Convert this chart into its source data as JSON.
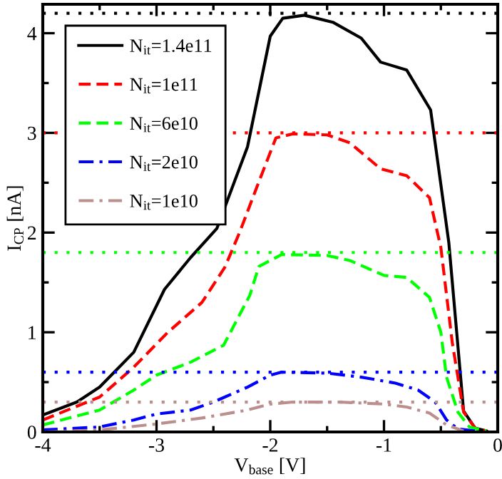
{
  "chart_data": {
    "type": "line",
    "xlabel": "V$_{base}$ [V]",
    "ylabel": "I$_{CP}$ [nA]",
    "xlim": [
      -4,
      0
    ],
    "ylim": [
      0,
      4.29
    ],
    "xticks": [
      -4,
      {
        "value": -3.5,
        "label": null
      },
      -3,
      {
        "value": -2.5,
        "label": null
      },
      -2,
      {
        "value": -1.5,
        "label": null
      },
      -1,
      {
        "value": -0.5,
        "label": null
      },
      0
    ],
    "yticks": [
      0,
      {
        "value": 0.5,
        "label": null
      },
      1,
      {
        "value": 1.5,
        "label": null
      },
      2,
      {
        "value": 2.5,
        "label": null
      },
      3,
      {
        "value": 3.5,
        "label": null
      },
      4
    ],
    "grid": false,
    "legend": "top left",
    "marker": "none",
    "series": [
      {
        "name": "N$_{it}$=1.4e11",
        "color": "#000000",
        "line_style": "solid",
        "x": [
          -4,
          -3.7,
          -3.5,
          -3.2,
          -2.93,
          -2.7,
          -2.47,
          -2.2,
          -2.0,
          -1.89,
          -1.7,
          -1.45,
          -1.2,
          -1.03,
          -0.8,
          -0.59,
          -0.43,
          -0.3,
          -0.2,
          -0.1
        ],
        "values": [
          0.17,
          0.3,
          0.45,
          0.8,
          1.43,
          1.75,
          2.04,
          2.86,
          3.97,
          4.15,
          4.18,
          4.11,
          3.95,
          3.71,
          3.63,
          3.23,
          1.9,
          0.21,
          0.04,
          0.01
        ]
      },
      {
        "name": "N$_{it}$=1e11",
        "color": "#ff0000",
        "line_style": "dashed",
        "x": [
          -4,
          -3.5,
          -3.2,
          -2.9,
          -2.6,
          -2.4,
          -2.27,
          -2.1,
          -1.95,
          -1.8,
          -1.5,
          -1.3,
          -1.03,
          -0.8,
          -0.6,
          -0.5,
          -0.4,
          -0.3,
          -0.2,
          -0.1
        ],
        "values": [
          0.12,
          0.35,
          0.65,
          1.0,
          1.3,
          1.65,
          2.0,
          2.51,
          2.95,
          2.99,
          2.98,
          2.9,
          2.64,
          2.57,
          2.35,
          1.85,
          0.9,
          0.2,
          0.04,
          0.01
        ]
      },
      {
        "name": "N$_{it}$=6e10",
        "color": "#00ff00",
        "line_style": "dashed",
        "x": [
          -4,
          -3.5,
          -3.2,
          -3.0,
          -2.7,
          -2.41,
          -2.18,
          -2.1,
          -1.9,
          -1.5,
          -1.3,
          -1.0,
          -0.8,
          -0.6,
          -0.5,
          -0.45,
          -0.35,
          -0.25,
          -0.1
        ],
        "values": [
          0.07,
          0.22,
          0.42,
          0.57,
          0.7,
          0.87,
          1.37,
          1.66,
          1.78,
          1.77,
          1.72,
          1.57,
          1.55,
          1.35,
          1.0,
          0.55,
          0.2,
          0.05,
          0.01
        ]
      },
      {
        "name": "N$_{it}$=2e10",
        "color": "#0000ff",
        "line_style": "dashdot",
        "x": [
          -4,
          -3.5,
          -3.2,
          -3.0,
          -2.7,
          -2.5,
          -2.2,
          -2.0,
          -1.9,
          -1.5,
          -1.2,
          -0.9,
          -0.7,
          -0.55,
          -0.45,
          -0.35,
          -0.2
        ],
        "values": [
          0.02,
          0.05,
          0.12,
          0.18,
          0.22,
          0.3,
          0.45,
          0.57,
          0.6,
          0.59,
          0.55,
          0.49,
          0.42,
          0.3,
          0.12,
          0.03,
          0.01
        ]
      },
      {
        "name": "N$_{it}$=1e10",
        "color": "#bc8f8f",
        "line_style": "dashdot",
        "x": [
          -4,
          -3.5,
          -3.0,
          -2.6,
          -2.2,
          -2.0,
          -1.8,
          -1.4,
          -1.0,
          -0.8,
          -0.6,
          -0.45,
          -0.3
        ],
        "values": [
          0.0,
          0.02,
          0.08,
          0.14,
          0.22,
          0.28,
          0.3,
          0.3,
          0.28,
          0.25,
          0.19,
          0.07,
          0.01
        ]
      }
    ],
    "ref_lines": [
      {
        "axis": "y",
        "value": 4.2,
        "color": "#000000",
        "line_style": "dotted"
      },
      {
        "axis": "y",
        "value": 3.0,
        "color": "#ff0000",
        "line_style": "dotted"
      },
      {
        "axis": "y",
        "value": 1.8,
        "color": "#00ff00",
        "line_style": "dotted"
      },
      {
        "axis": "y",
        "value": 0.6,
        "color": "#0000ff",
        "line_style": "dotted"
      },
      {
        "axis": "y",
        "value": 0.3,
        "color": "#bc8f8f",
        "line_style": "dotted"
      }
    ]
  }
}
